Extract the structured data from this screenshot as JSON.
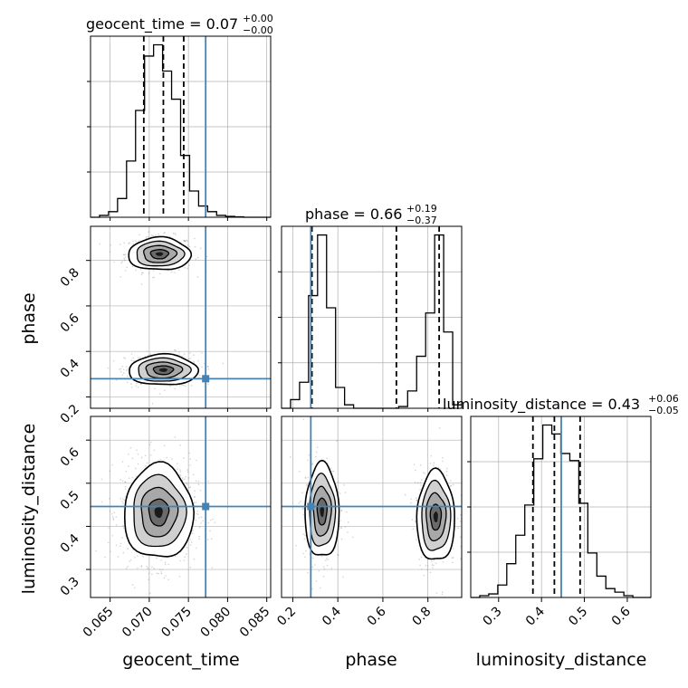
{
  "chart_data": {
    "type": "corner",
    "parameters": [
      "geocent_time",
      "phase",
      "luminosity_distance"
    ],
    "truth": {
      "geocent_time": 0.0772,
      "phase": 0.28,
      "luminosity_distance": 0.446
    },
    "titles": [
      {
        "param": "geocent_time",
        "text": "geocent_time = 0.07",
        "sup": "+0.00",
        "sub": "−0.00"
      },
      {
        "param": "phase",
        "text": "phase = 0.66",
        "sup": "+0.19",
        "sub": "−0.37"
      },
      {
        "param": "luminosity_distance",
        "text": "luminosity_distance = 0.43",
        "sup": "+0.06",
        "sub": "−0.05"
      }
    ],
    "axes": {
      "geocent_time": {
        "label": "geocent_time",
        "range": [
          0.0625,
          0.0855
        ],
        "ticks": [
          0.065,
          0.07,
          0.075,
          0.08,
          0.085
        ],
        "tick_labels": [
          "0.065",
          "0.070",
          "0.075",
          "0.080",
          "0.085"
        ]
      },
      "phase": {
        "label": "phase",
        "range": [
          0.15,
          0.95
        ],
        "ticks": [
          0.2,
          0.4,
          0.6,
          0.8
        ],
        "tick_labels": [
          "0.2",
          "0.4",
          "0.6",
          "0.8"
        ]
      },
      "luminosity_distance": {
        "label": "luminosity_distance",
        "range": [
          0.235,
          0.655
        ],
        "ticks": [
          0.3,
          0.4,
          0.5,
          0.6
        ],
        "tick_labels": [
          "0.3",
          "0.4",
          "0.5",
          "0.6"
        ]
      }
    },
    "histograms": {
      "geocent_time": {
        "bin_edges": [
          0.0625,
          0.06365,
          0.0648,
          0.06595,
          0.0671,
          0.06825,
          0.0694,
          0.07055,
          0.0717,
          0.07285,
          0.074,
          0.07515,
          0.0763,
          0.07745,
          0.0786,
          0.07975,
          0.0809,
          0.08205,
          0.0832,
          0.08435,
          0.0855
        ],
        "counts": [
          0,
          1,
          3,
          10,
          30,
          57,
          86,
          92,
          78,
          63,
          33,
          14,
          6,
          3,
          1,
          0.5,
          0.2,
          0,
          0,
          0
        ],
        "quantiles": [
          0.0693,
          0.0718,
          0.0744
        ]
      },
      "phase": {
        "bin_edges": [
          0.15,
          0.19,
          0.23,
          0.27,
          0.31,
          0.35,
          0.39,
          0.43,
          0.47,
          0.51,
          0.55,
          0.59,
          0.63,
          0.67,
          0.71,
          0.75,
          0.79,
          0.83,
          0.87,
          0.91,
          0.95
        ],
        "counts": [
          0,
          5,
          15,
          65,
          100,
          58,
          12,
          2,
          0,
          0,
          0,
          0,
          0,
          1,
          10,
          30,
          55,
          100,
          44,
          2
        ],
        "quantiles": [
          0.285,
          0.66,
          0.85
        ]
      },
      "luminosity_distance": {
        "bin_edges": [
          0.235,
          0.256,
          0.277,
          0.298,
          0.319,
          0.34,
          0.361,
          0.382,
          0.403,
          0.424,
          0.445,
          0.466,
          0.487,
          0.508,
          0.529,
          0.55,
          0.571,
          0.592,
          0.613,
          0.634,
          0.655
        ],
        "counts": [
          0,
          1,
          2,
          7,
          19,
          35,
          52,
          78,
          97,
          92,
          81,
          77,
          53,
          25,
          12,
          5,
          3,
          1,
          0,
          0
        ],
        "quantiles": [
          0.38,
          0.43,
          0.49
        ]
      }
    },
    "density_2d": [
      {
        "x": "geocent_time",
        "y": "phase",
        "clusters": [
          {
            "cx": 0.0713,
            "cy": 0.828,
            "sx": 0.0019,
            "sy": 0.034,
            "weight": 0.52
          },
          {
            "cx": 0.0718,
            "cy": 0.318,
            "sx": 0.0021,
            "sy": 0.032,
            "weight": 0.48
          }
        ]
      },
      {
        "x": "geocent_time",
        "y": "luminosity_distance",
        "clusters": [
          {
            "cx": 0.0712,
            "cy": 0.433,
            "sx": 0.0021,
            "sy": 0.052,
            "weight": 1.0
          }
        ]
      },
      {
        "x": "phase",
        "y": "luminosity_distance",
        "clusters": [
          {
            "cx": 0.33,
            "cy": 0.435,
            "sx": 0.036,
            "sy": 0.052,
            "weight": 0.5
          },
          {
            "cx": 0.835,
            "cy": 0.422,
            "sx": 0.04,
            "sy": 0.05,
            "weight": 0.5
          }
        ]
      }
    ],
    "grid": true,
    "colors": {
      "hist": "#000000",
      "quantile": "#000000",
      "truth": "#4682b4",
      "grid": "#b0b0b0",
      "scatter": "#808080",
      "density": "#000000"
    }
  }
}
